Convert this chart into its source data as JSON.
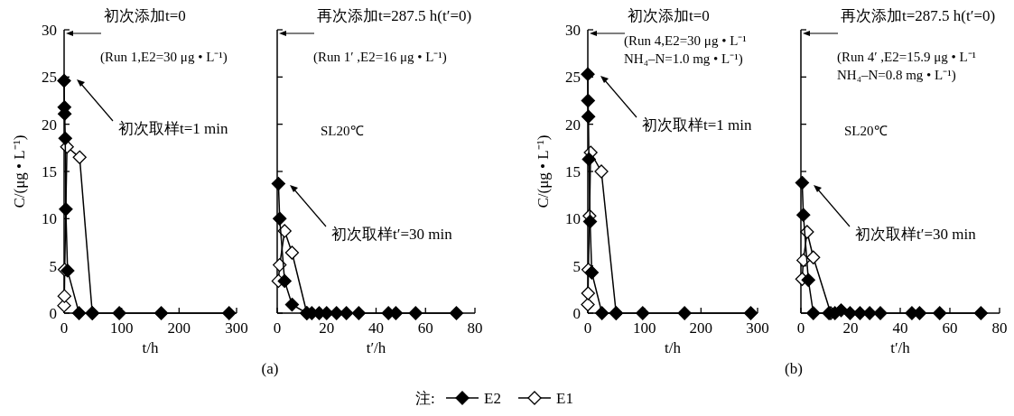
{
  "chart_data": [
    {
      "type": "line",
      "marker": "diamond",
      "xlabel": "t/h",
      "ylabel": "C/(μg • L⁻¹)",
      "xlim": [
        0,
        300
      ],
      "xticks": [
        0,
        100,
        200,
        300
      ],
      "ylim": [
        0,
        30
      ],
      "yticks": [
        0,
        5,
        10,
        15,
        20,
        25,
        30
      ],
      "legend": false,
      "series": [
        {
          "color": "#000000",
          "x": [
            0.02,
            0.5,
            1,
            2,
            3,
            6,
            26,
            49,
            96,
            169,
            287
          ],
          "values": [
            24.6,
            21.8,
            21.1,
            18.5,
            11.0,
            4.5,
            0,
            0,
            0,
            0,
            0
          ]
        },
        {
          "color": "#ffffff",
          "x": [
            0.02,
            0.5,
            1,
            5,
            27,
            49
          ],
          "values": [
            0.8,
            1.8,
            4.6,
            17.6,
            16.5,
            0
          ]
        }
      ],
      "annotations": [
        "初次添加t=0",
        "初次取样t=1 min",
        "(Run 1,E2=30 μg • L⁻¹)"
      ]
    },
    {
      "type": "line",
      "marker": "diamond",
      "title": "(a)",
      "xlabel": "t′/h",
      "xlim": [
        0,
        80
      ],
      "xticks": [
        0,
        20,
        40,
        60,
        80
      ],
      "ylim": [
        0,
        30
      ],
      "yticks": [
        0,
        5,
        10,
        15,
        20,
        25,
        30
      ],
      "tick_labels": "x",
      "legend": false,
      "series": [
        {
          "color": "#000000",
          "x": [
            0.5,
            1,
            3,
            6,
            12,
            14,
            17,
            20,
            24,
            28,
            33,
            45,
            48,
            56,
            72.5
          ],
          "values": [
            13.7,
            10.0,
            3.4,
            0.9,
            0,
            0,
            0,
            0,
            0,
            0,
            0,
            0,
            0,
            0,
            0
          ]
        },
        {
          "color": "#ffffff",
          "x": [
            0.5,
            1,
            3,
            6,
            12
          ],
          "values": [
            3.4,
            5.1,
            8.7,
            6.4,
            0
          ]
        }
      ],
      "annotations": [
        "再次添加t=287.5 h(t′=0)",
        "初次取样t′=30 min",
        "(Run 1′ ,E2=16 μg • L⁻¹)",
        "SL20℃"
      ]
    },
    {
      "type": "line",
      "marker": "diamond",
      "xlabel": "t/h",
      "ylabel": "C/(μg • L⁻¹)",
      "xlim": [
        0,
        300
      ],
      "xticks": [
        0,
        100,
        200,
        300
      ],
      "ylim": [
        0,
        30
      ],
      "yticks": [
        0,
        5,
        10,
        15,
        20,
        25,
        30
      ],
      "legend": false,
      "series": [
        {
          "color": "#000000",
          "x": [
            0.02,
            0.5,
            1,
            2,
            4,
            7,
            25,
            50,
            97,
            171,
            288
          ],
          "values": [
            25.3,
            22.5,
            20.8,
            16.3,
            9.7,
            4.3,
            0,
            0,
            0,
            0,
            0
          ]
        },
        {
          "color": "#ffffff",
          "x": [
            0.02,
            0.5,
            1,
            3,
            5,
            24,
            50
          ],
          "values": [
            0.9,
            2.1,
            4.6,
            10.3,
            17.0,
            15.0,
            0
          ]
        }
      ],
      "annotations": [
        "初次添加t=0",
        "初次取样t=1 min",
        "(Run 4,E2=30 μg • L⁻¹\nNH₄–N=1.0 mg • L⁻¹)"
      ]
    },
    {
      "type": "line",
      "marker": "diamond",
      "title": "(b)",
      "xlabel": "t′/h",
      "xlim": [
        0,
        80
      ],
      "xticks": [
        0,
        20,
        40,
        60,
        80
      ],
      "ylim": [
        0,
        30
      ],
      "yticks": [
        0,
        5,
        10,
        15,
        20,
        25,
        30
      ],
      "tick_labels": "x",
      "legend": "bottom",
      "legend_title": "注:",
      "series": [
        {
          "name": "E2",
          "color": "#000000",
          "x": [
            0.5,
            1,
            3,
            5,
            11.3,
            13.7,
            16.2,
            19.8,
            23.8,
            27.7,
            32,
            44.7,
            47.8,
            55.9,
            72.5
          ],
          "values": [
            13.8,
            10.4,
            3.5,
            0,
            0,
            0,
            0.3,
            0,
            0,
            0,
            0,
            0,
            0,
            0,
            0
          ]
        },
        {
          "name": "E1",
          "color": "#ffffff",
          "x": [
            0.5,
            1,
            2.5,
            5,
            12
          ],
          "values": [
            3.6,
            5.6,
            8.6,
            5.9,
            0
          ]
        }
      ],
      "annotations": [
        "再次添加t=287.5 h(t′=0)",
        "初次取样t′=30 min",
        "(Run 4′ ,E2=15.9 μg • L⁻¹\nNH₄–N=0.8 mg • L⁻¹)",
        "SL20℃"
      ]
    }
  ]
}
